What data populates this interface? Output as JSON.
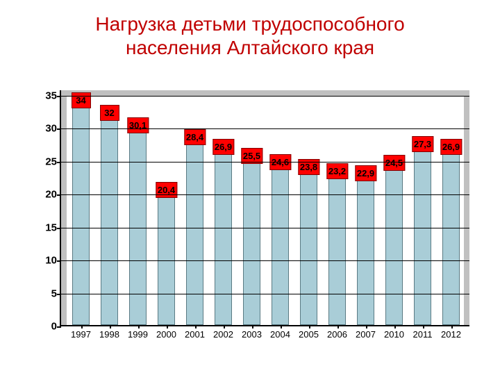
{
  "title_line1": "Нагрузка детьми трудоспособного",
  "title_line2": "населения Алтайского края",
  "chart": {
    "type": "bar",
    "categories": [
      "1997",
      "1998",
      "1999",
      "2000",
      "2001",
      "2002",
      "2003",
      "2004",
      "2005",
      "2006",
      "2007",
      "2010",
      "2011",
      "2012"
    ],
    "values": [
      34,
      32,
      30.1,
      20.4,
      28.4,
      26.9,
      25.5,
      24.6,
      23.8,
      23.2,
      22.9,
      24.5,
      27.3,
      26.9
    ],
    "value_labels": [
      "34",
      "32",
      "30,1",
      "20,4",
      "28,4",
      "26,9",
      "25,5",
      "24,6",
      "23,8",
      "23,2",
      "22,9",
      "24,5",
      "27,3",
      "26,9"
    ],
    "ylim": [
      0,
      35
    ],
    "ytick_step": 5,
    "y_ticks": [
      "0",
      "5",
      "10",
      "15",
      "20",
      "25",
      "30",
      "35"
    ],
    "bar_color": "#a9cdd7",
    "bar_border_color": "#5a7a83",
    "label_bg_color": "#ff0000",
    "label_text_color": "#000000",
    "plot_bg_color": "#c0c0c0",
    "plot_inner_bg_color": "#ffffff",
    "grid_color": "#000000",
    "axis_color": "#000000",
    "bar_width_ratio": 0.62,
    "title_color": "#c00000",
    "title_fontsize": 28,
    "tick_fontsize": 15,
    "xlabel_fontsize": 13,
    "value_label_fontsize": 13
  }
}
